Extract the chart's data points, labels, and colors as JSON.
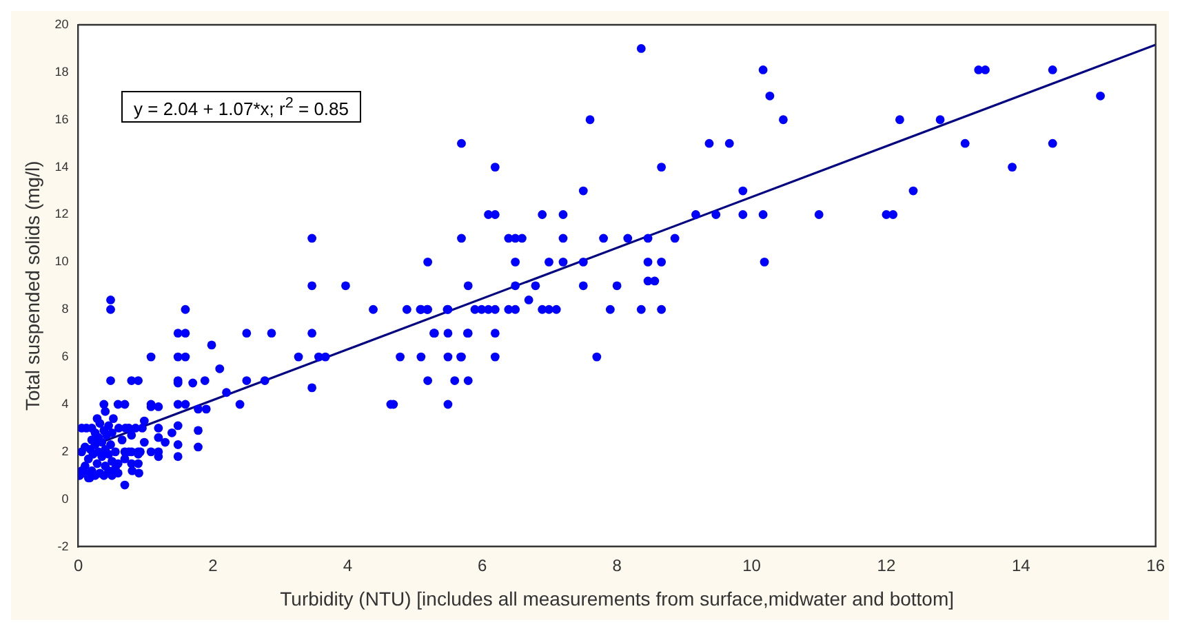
{
  "chart_data": {
    "type": "scatter",
    "xlabel": "Turbidity (NTU) [includes all measurements from surface,midwater and bottom]",
    "ylabel": "Total suspended solids (mg/l)",
    "annotations": [
      "y = 2.04 + 1.07*x; r$^{2}$ = 0.85"
    ],
    "xlim": [
      0,
      16
    ],
    "xticks": [
      0,
      2,
      4,
      6,
      8,
      10,
      12,
      14,
      16
    ],
    "ylim": [
      -2,
      20
    ],
    "yticks": [
      -2,
      0,
      2,
      4,
      6,
      8,
      10,
      12,
      14,
      16,
      18,
      20
    ],
    "grid": false,
    "legend": false,
    "marker": "circle",
    "series": [
      {
        "type": "scatter",
        "color": "#0000ff",
        "x": [
          8.36,
          10.17,
          13.37,
          13.47,
          14.47,
          10.27,
          15.18,
          7.6,
          10.47,
          12.2,
          12.8,
          5.69,
          9.37,
          9.67,
          13.17,
          14.47,
          6.19,
          8.66,
          13.87,
          7.5,
          9.87,
          12.4,
          6.09,
          6.19,
          6.89,
          7.2,
          9.17,
          9.47,
          9.87,
          10.17,
          11.0,
          12.0,
          12.1,
          5.69,
          6.39,
          6.49,
          6.59,
          7.2,
          7.8,
          8.16,
          8.46,
          8.86,
          3.47,
          5.19,
          6.49,
          6.99,
          7.2,
          7.5,
          8.46,
          8.66,
          10.19,
          5.79,
          6.49,
          6.79,
          7.5,
          8.0,
          8.46,
          8.56,
          3.47,
          3.97,
          0.48,
          6.69,
          4.88,
          5.09,
          5.19,
          5.49,
          5.89,
          5.99,
          6.09,
          6.19,
          6.39,
          6.49,
          6.89,
          6.99,
          7.1,
          7.9,
          8.36,
          8.66,
          0.48,
          1.59,
          4.38,
          5.08,
          5.18,
          5.48,
          5.29,
          5.49,
          5.79,
          6.19,
          1.48,
          1.59,
          2.5,
          2.87,
          3.47,
          5.28,
          5.78,
          1.98,
          4.78,
          5.09,
          5.49,
          5.69,
          6.19,
          7.7,
          1.08,
          1.48,
          1.59,
          3.27,
          3.57,
          3.67,
          5.68,
          2.1,
          5.19,
          5.59,
          5.79,
          0.48,
          0.79,
          0.89,
          1.48,
          1.88,
          2.5,
          2.77,
          1.48,
          1.7,
          3.47,
          2.2,
          4.64,
          5.49,
          0.38,
          0.59,
          0.69,
          1.08,
          1.48,
          1.59,
          2.4,
          4.68,
          1.08,
          1.19,
          1.78,
          1.9,
          0.98,
          0.79,
          1.19,
          1.48,
          1.78,
          1.39,
          1.19,
          0.98,
          1.29,
          1.48,
          1.78,
          0.69,
          0.79,
          0.89,
          1.08,
          1.19,
          0.89,
          1.19,
          1.48,
          0.69,
          0.89,
          0.59,
          0.79,
          0.59,
          0.69,
          0.17,
          0.02,
          0.05,
          0.05,
          0.05,
          0.1,
          0.1,
          0.1,
          0.12,
          0.15,
          0.15,
          0.18,
          0.2,
          0.2,
          0.2,
          0.22,
          0.25,
          0.25,
          0.25,
          0.28,
          0.28,
          0.3,
          0.3,
          0.32,
          0.32,
          0.35,
          0.35,
          0.38,
          0.38,
          0.4,
          0.4,
          0.4,
          0.42,
          0.45,
          0.45,
          0.45,
          0.48,
          0.5,
          0.5,
          0.5,
          0.52,
          0.55,
          0.55,
          0.6,
          0.65,
          0.7,
          0.75,
          0.75,
          0.8,
          0.85,
          0.9,
          0.92,
          0.95
        ],
        "values": [
          19,
          18.1,
          18.1,
          18.1,
          18.1,
          17,
          17,
          16,
          16,
          16,
          16,
          15,
          15,
          15,
          15,
          15,
          14,
          14,
          14,
          13,
          13,
          13,
          12,
          12,
          12,
          12,
          12,
          12,
          12,
          12,
          12,
          12,
          12,
          11,
          11,
          11,
          11,
          11,
          11,
          11,
          11,
          11,
          11,
          10,
          10,
          10,
          10,
          10,
          10,
          10,
          10,
          9,
          9,
          9,
          9,
          9,
          9.2,
          9.2,
          9,
          9,
          8.4,
          8.4,
          8,
          8,
          8,
          8,
          8,
          8,
          8,
          8,
          8,
          8,
          8,
          8,
          8,
          8,
          8,
          8,
          8,
          8,
          8,
          8,
          8,
          8,
          7,
          7,
          7,
          7,
          7,
          7,
          7,
          7,
          7,
          7,
          7,
          6.5,
          6,
          6,
          6,
          6,
          6,
          6,
          6,
          6,
          6,
          6,
          6,
          6,
          6,
          5.5,
          5,
          5,
          5,
          5,
          5,
          5,
          5,
          5,
          5,
          5,
          4.9,
          4.9,
          4.7,
          4.5,
          4,
          4,
          4,
          4,
          4,
          4,
          4,
          4,
          4,
          4,
          3.9,
          3.9,
          3.8,
          3.8,
          3.3,
          2.7,
          3,
          3.1,
          2.9,
          2.8,
          2.6,
          2.4,
          2.4,
          2.3,
          2.2,
          2,
          2,
          2,
          2,
          2,
          1.9,
          1.8,
          1.8,
          1.7,
          1.5,
          1.5,
          1.5,
          1.1,
          0.6,
          0.9,
          1,
          1.2,
          2,
          3,
          1.1,
          1.4,
          2.2,
          3,
          0.9,
          1.7,
          2.1,
          1.2,
          2.5,
          3,
          1.9,
          1,
          2.3,
          2.8,
          1.5,
          3.4,
          2,
          2.6,
          1.1,
          3.2,
          1.8,
          2.4,
          1,
          2.9,
          1.4,
          2.1,
          3.7,
          2.7,
          1.2,
          1.9,
          3.1,
          2.3,
          1,
          1.6,
          2.8,
          3.4,
          2,
          1.3,
          3,
          2.5,
          3,
          2,
          3,
          1.2,
          3,
          1.1,
          2,
          3
        ]
      },
      {
        "type": "line",
        "color": "#000080",
        "x": [
          0,
          16
        ],
        "values": [
          2.04,
          19.16
        ],
        "marker": "none"
      }
    ]
  }
}
